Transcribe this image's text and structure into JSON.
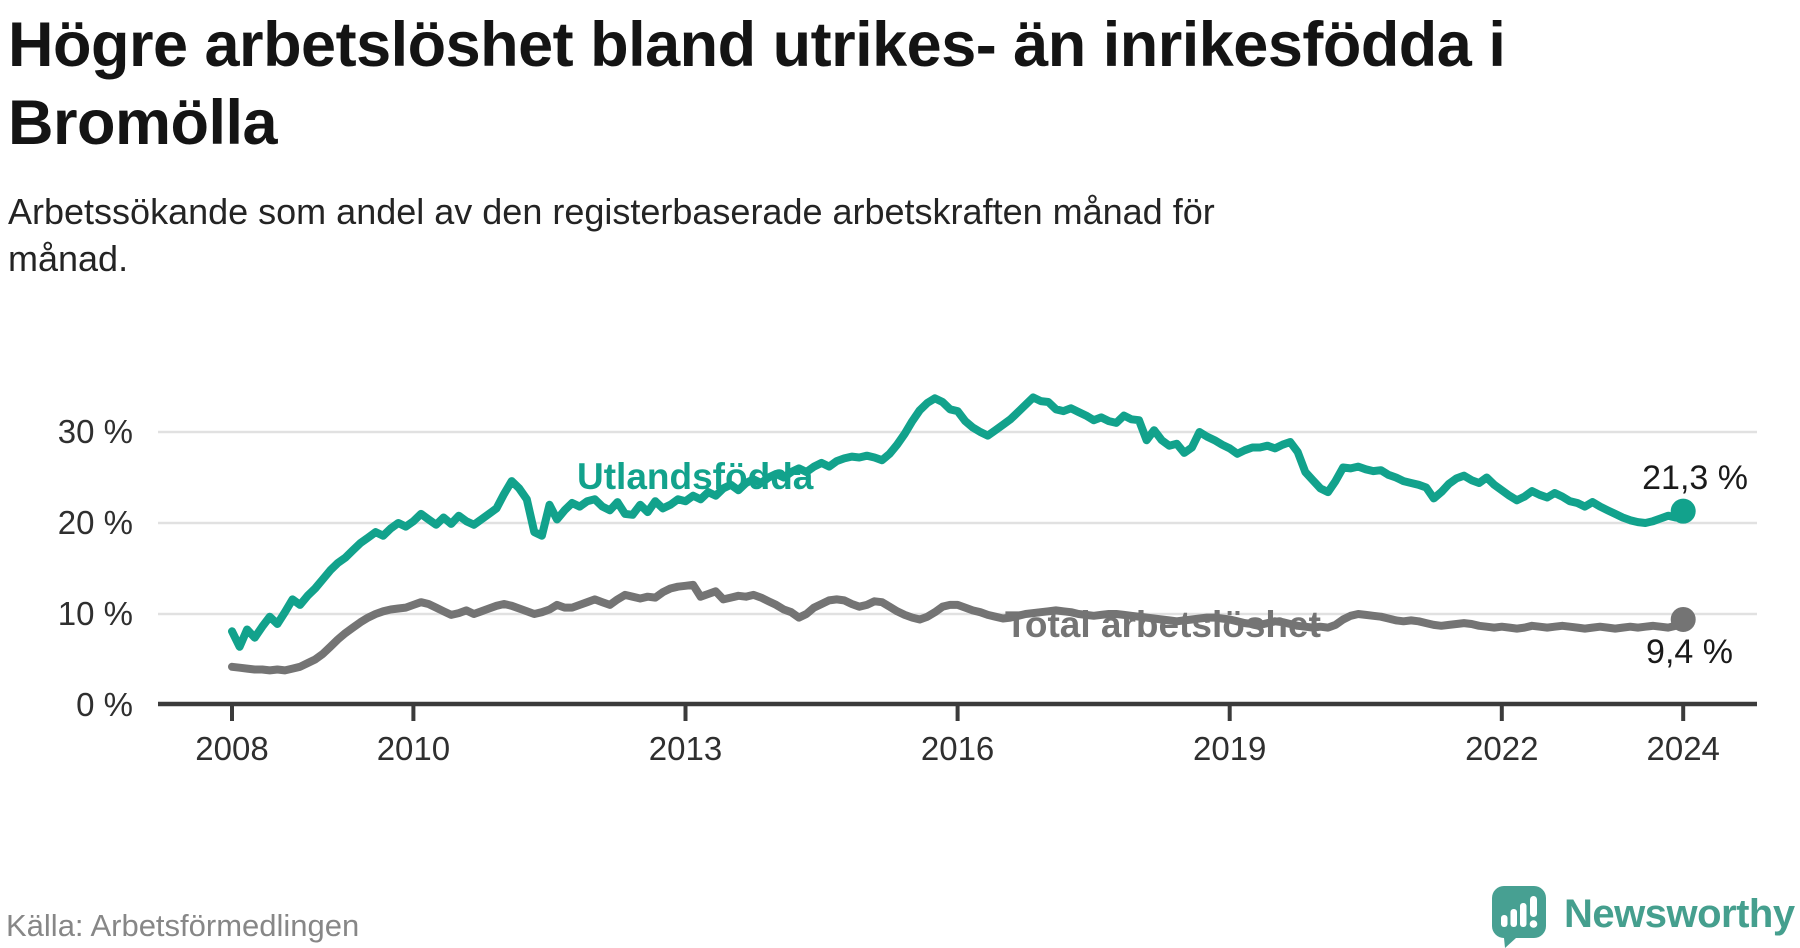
{
  "header": {
    "title": "Högre arbetslöshet bland utrikes- än inrikesfödda i Bromölla",
    "title_lines": [
      "Högre arbetslöshet bland utrikes- än inrikesfödda i",
      "Bromölla"
    ],
    "subtitle_lines": [
      "Arbetssökande som andel av den registerbaserade arbetskraften månad för",
      "månad."
    ]
  },
  "footer": {
    "source": "Källa: Arbetsförmedlingen",
    "brand": "Newsworthy"
  },
  "colors": {
    "foreign_born": "#12a28c",
    "total": "#747474",
    "logo_teal": "#47a092",
    "grid": "#e1e1e1",
    "axis": "#3b3b3b",
    "tick_text": "#2f2f2f",
    "end_label_text": "#1a1a1a"
  },
  "chart_data": {
    "type": "line",
    "title": "Högre arbetslöshet bland utrikes- än inrikesfödda i Bromölla",
    "xlabel": "",
    "ylabel": "Arbetssökande som andel av den registerbaserade arbetskraften",
    "x_start": {
      "year": 2008,
      "month": 1
    },
    "x_frequency": "monthly",
    "x_tick_years": [
      2008,
      2010,
      2013,
      2016,
      2019,
      2022,
      2024
    ],
    "y_ticks": [
      {
        "value": 0,
        "label": "0 %"
      },
      {
        "value": 10,
        "label": "10 %"
      },
      {
        "value": 20,
        "label": "20 %"
      },
      {
        "value": 30,
        "label": "30 %"
      }
    ],
    "ylim": [
      0,
      36
    ],
    "grid": true,
    "legend_position": "inline-labels",
    "series": [
      {
        "name": "Utlandsfödda",
        "color": "#12a28c",
        "end_label": "21,3 %",
        "end_value": 21.3,
        "values": [
          8.1,
          6.4,
          8.3,
          7.4,
          8.6,
          9.7,
          8.9,
          10.2,
          11.6,
          11.0,
          12.0,
          12.8,
          13.8,
          14.8,
          15.6,
          16.2,
          17.0,
          17.8,
          18.4,
          19.0,
          18.6,
          19.4,
          20.0,
          19.6,
          20.2,
          21.0,
          20.4,
          19.8,
          20.6,
          19.9,
          20.8,
          20.2,
          19.8,
          20.4,
          21.0,
          21.6,
          23.2,
          24.6,
          23.8,
          22.6,
          19.0,
          18.6,
          22.0,
          20.4,
          21.4,
          22.2,
          21.8,
          22.4,
          22.6,
          21.8,
          21.4,
          22.3,
          21.0,
          20.9,
          22.0,
          21.2,
          22.4,
          21.6,
          22.0,
          22.6,
          22.4,
          23.0,
          22.6,
          23.4,
          23.0,
          23.8,
          24.2,
          23.6,
          24.4,
          24.8,
          24.4,
          25.0,
          25.4,
          25.0,
          25.6,
          26.0,
          25.6,
          26.2,
          26.6,
          26.2,
          26.8,
          27.1,
          27.3,
          27.2,
          27.4,
          27.2,
          26.9,
          27.6,
          28.6,
          29.8,
          31.2,
          32.4,
          33.2,
          33.7,
          33.3,
          32.5,
          32.3,
          31.2,
          30.5,
          30.0,
          29.6,
          30.2,
          30.8,
          31.4,
          32.2,
          33.0,
          33.8,
          33.4,
          33.3,
          32.5,
          32.3,
          32.6,
          32.2,
          31.8,
          31.3,
          31.6,
          31.2,
          31.0,
          31.8,
          31.4,
          31.3,
          29.1,
          30.2,
          29.1,
          28.5,
          28.7,
          27.7,
          28.3,
          30.0,
          29.5,
          29.1,
          28.6,
          28.2,
          27.6,
          28.0,
          28.3,
          28.3,
          28.5,
          28.2,
          28.6,
          28.9,
          27.8,
          25.6,
          24.7,
          23.8,
          23.4,
          24.6,
          26.1,
          26.0,
          26.2,
          25.9,
          25.7,
          25.8,
          25.3,
          25.0,
          24.6,
          24.4,
          24.2,
          23.9,
          22.7,
          23.4,
          24.3,
          24.9,
          25.2,
          24.7,
          24.4,
          25.0,
          24.2,
          23.6,
          23.0,
          22.5,
          22.9,
          23.5,
          23.1,
          22.8,
          23.3,
          22.9,
          22.4,
          22.2,
          21.8,
          22.3,
          21.8,
          21.4,
          21.0,
          20.6,
          20.3,
          20.1,
          20.0,
          20.2,
          20.5,
          20.8,
          20.6,
          21.3
        ]
      },
      {
        "name": "Total arbetslöshet",
        "color": "#747474",
        "end_label": "9,4 %",
        "end_value": 9.4,
        "values": [
          4.2,
          4.1,
          4.0,
          3.9,
          3.9,
          3.8,
          3.9,
          3.8,
          4.0,
          4.2,
          4.6,
          5.0,
          5.6,
          6.4,
          7.2,
          7.9,
          8.5,
          9.1,
          9.6,
          10.0,
          10.3,
          10.5,
          10.6,
          10.7,
          11.0,
          11.3,
          11.1,
          10.7,
          10.3,
          9.9,
          10.1,
          10.4,
          10.0,
          10.3,
          10.6,
          10.9,
          11.1,
          10.9,
          10.6,
          10.3,
          10.0,
          10.2,
          10.5,
          11.0,
          10.7,
          10.7,
          11.0,
          11.3,
          11.6,
          11.3,
          11.0,
          11.6,
          12.1,
          11.9,
          11.7,
          11.9,
          11.8,
          12.4,
          12.8,
          13.0,
          13.1,
          13.2,
          11.9,
          12.2,
          12.5,
          11.6,
          11.8,
          12.0,
          11.9,
          12.1,
          11.8,
          11.4,
          11.0,
          10.5,
          10.2,
          9.6,
          10.0,
          10.7,
          11.1,
          11.5,
          11.6,
          11.5,
          11.1,
          10.8,
          11.0,
          11.4,
          11.3,
          10.8,
          10.3,
          9.9,
          9.6,
          9.4,
          9.7,
          10.2,
          10.8,
          11.0,
          11.0,
          10.7,
          10.4,
          10.2,
          9.9,
          9.7,
          9.5,
          9.6,
          9.8,
          10.0,
          10.1,
          10.2,
          10.3,
          10.4,
          10.3,
          10.2,
          10.0,
          9.9,
          9.8,
          9.9,
          10.0,
          10.0,
          9.9,
          9.8,
          9.7,
          9.6,
          9.5,
          9.4,
          9.3,
          9.2,
          9.3,
          9.4,
          9.5,
          9.6,
          9.6,
          9.5,
          9.4,
          9.2,
          9.0,
          8.9,
          8.8,
          9.0,
          9.2,
          9.1,
          8.9,
          8.7,
          8.6,
          8.5,
          8.6,
          8.5,
          8.8,
          9.4,
          9.8,
          10.0,
          9.9,
          9.8,
          9.7,
          9.5,
          9.3,
          9.2,
          9.3,
          9.2,
          9.0,
          8.8,
          8.7,
          8.8,
          8.9,
          9.0,
          8.9,
          8.7,
          8.6,
          8.5,
          8.6,
          8.5,
          8.4,
          8.5,
          8.7,
          8.6,
          8.5,
          8.6,
          8.7,
          8.6,
          8.5,
          8.4,
          8.5,
          8.6,
          8.5,
          8.4,
          8.5,
          8.6,
          8.5,
          8.6,
          8.7,
          8.6,
          8.5,
          8.7,
          9.4
        ]
      }
    ]
  }
}
